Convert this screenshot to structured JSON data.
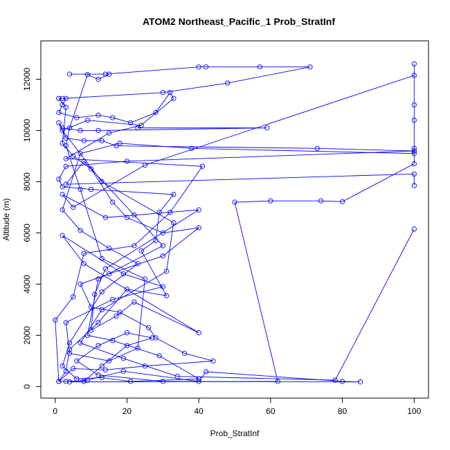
{
  "chart_data": {
    "type": "line",
    "title": "ATOM2 Northeast_Pacific_1 Prob_StratInf",
    "xlabel": "Prob_StratInf",
    "ylabel": "Altitude (m)",
    "xlim": [
      -4,
      104
    ],
    "ylim": [
      -450,
      13500
    ],
    "xticks": [
      0,
      20,
      40,
      60,
      80,
      100
    ],
    "yticks": [
      0,
      2000,
      4000,
      6000,
      8000,
      10000,
      12000
    ],
    "grid": false,
    "color": "#0000ff",
    "series": [
      {
        "values": [
          [
            4,
            12200
          ],
          [
            14,
            12200
          ],
          [
            40,
            12480
          ],
          [
            42,
            12480
          ],
          [
            57,
            12480
          ],
          [
            71,
            12480
          ],
          [
            48,
            11850
          ],
          [
            30,
            11480
          ],
          [
            2,
            11250
          ],
          [
            1,
            11250
          ],
          [
            3,
            11250
          ],
          [
            2,
            11000
          ],
          [
            1,
            10700
          ],
          [
            6,
            10500
          ],
          [
            12,
            10600
          ],
          [
            16,
            10500
          ],
          [
            21,
            10300
          ],
          [
            28,
            10700
          ],
          [
            32,
            11480
          ],
          [
            33,
            11250
          ],
          [
            23,
            10100
          ],
          [
            59,
            10100
          ],
          [
            12,
            10000
          ],
          [
            7,
            10000
          ],
          [
            2,
            10100
          ],
          [
            1,
            10300
          ],
          [
            3,
            9700
          ],
          [
            8,
            9600
          ],
          [
            13,
            9600
          ],
          [
            17,
            9400
          ],
          [
            73,
            9300
          ],
          [
            100,
            9200
          ],
          [
            20,
            8800
          ],
          [
            3,
            8600
          ],
          [
            1,
            8100
          ],
          [
            2,
            7800
          ],
          [
            10,
            7700
          ],
          [
            33,
            7500
          ],
          [
            29,
            6800
          ],
          [
            28,
            5700
          ],
          [
            24,
            5300
          ],
          [
            31,
            3550
          ],
          [
            20,
            3800
          ],
          [
            12,
            2500
          ],
          [
            4,
            1450
          ],
          [
            3,
            600
          ],
          [
            1,
            200
          ],
          [
            3,
            200
          ],
          [
            9,
            250
          ],
          [
            19,
            600
          ],
          [
            40,
            200
          ],
          [
            42,
            580
          ],
          [
            80,
            200
          ],
          [
            85,
            180
          ],
          [
            30,
            200
          ],
          [
            12,
            450
          ],
          [
            6,
            1000
          ],
          [
            12,
            1600
          ],
          [
            20,
            2100
          ],
          [
            27,
            1900
          ],
          [
            20,
            1600
          ],
          [
            13,
            800
          ],
          [
            8,
            200
          ],
          [
            4,
            180
          ],
          [
            62,
            200
          ],
          [
            50,
            7200
          ],
          [
            60,
            7250
          ],
          [
            74,
            7250
          ],
          [
            80,
            7220
          ],
          [
            100,
            8700
          ],
          [
            100,
            9200
          ],
          [
            100,
            10400
          ],
          [
            100,
            11000
          ],
          [
            100,
            12600
          ],
          [
            100,
            12150
          ],
          [
            25,
            8650
          ],
          [
            5,
            7000
          ],
          [
            2,
            7500
          ],
          [
            14,
            6600
          ],
          [
            40,
            6900
          ],
          [
            14,
            4600
          ],
          [
            11,
            3600
          ],
          [
            10,
            2200
          ],
          [
            17,
            2750
          ],
          [
            22,
            3300
          ],
          [
            40,
            2100
          ],
          [
            8,
            4800
          ],
          [
            2,
            5900
          ],
          [
            19,
            4400
          ],
          [
            30,
            3900
          ],
          [
            16,
            3400
          ],
          [
            3,
            2500
          ],
          [
            4,
            1300
          ],
          [
            15,
            1000
          ],
          [
            23,
            1500
          ],
          [
            25,
            4200
          ],
          [
            13,
            5000
          ],
          [
            7,
            7700
          ],
          [
            3,
            9400
          ],
          [
            4,
            10100
          ],
          [
            9,
            12180
          ],
          [
            12,
            12000
          ],
          [
            15,
            12200
          ]
        ]
      },
      {
        "values": [
          [
            1,
            11250
          ],
          [
            3,
            10900
          ],
          [
            2,
            9500
          ],
          [
            5,
            9000
          ],
          [
            10,
            8500
          ],
          [
            16,
            7200
          ],
          [
            20,
            6600
          ],
          [
            30,
            6000
          ],
          [
            40,
            6200
          ],
          [
            30,
            5100
          ],
          [
            15,
            4400
          ],
          [
            7,
            4000
          ],
          [
            10,
            3100
          ],
          [
            18,
            2900
          ],
          [
            26,
            2300
          ],
          [
            28,
            1900
          ],
          [
            36,
            1300
          ],
          [
            44,
            1000
          ],
          [
            25,
            800
          ],
          [
            14,
            650
          ],
          [
            5,
            700
          ],
          [
            1,
            200
          ],
          [
            0,
            2600
          ],
          [
            5,
            3500
          ],
          [
            8,
            5200
          ],
          [
            22,
            5500
          ],
          [
            32,
            6800
          ],
          [
            41,
            8600
          ],
          [
            3,
            8900
          ],
          [
            15,
            9900
          ],
          [
            24,
            10200
          ],
          [
            9,
            10400
          ],
          [
            2,
            10000
          ],
          [
            13,
            8000
          ],
          [
            33,
            6400
          ],
          [
            31,
            4500
          ],
          [
            13,
            3000
          ],
          [
            7,
            1700
          ],
          [
            19,
            1100
          ],
          [
            34,
            400
          ],
          [
            78,
            250
          ],
          [
            100,
            6150
          ]
        ]
      },
      {
        "values": [
          [
            100,
            7850
          ],
          [
            100,
            8300
          ],
          [
            3,
            7900
          ],
          [
            8,
            8800
          ],
          [
            22,
            6700
          ],
          [
            30,
            5500
          ],
          [
            12,
            4200
          ],
          [
            9,
            2000
          ],
          [
            16,
            1800
          ],
          [
            29,
            1200
          ],
          [
            40,
            300
          ],
          [
            21,
            200
          ],
          [
            13,
            350
          ],
          [
            6,
            300
          ],
          [
            2,
            800
          ],
          [
            4,
            1700
          ],
          [
            13,
            3700
          ],
          [
            23,
            4800
          ],
          [
            15,
            5400
          ],
          [
            7,
            6100
          ],
          [
            2,
            6900
          ],
          [
            7,
            9100
          ],
          [
            18,
            9500
          ],
          [
            38,
            9300
          ],
          [
            100,
            9100
          ],
          [
            100,
            9300
          ]
        ]
      }
    ]
  }
}
